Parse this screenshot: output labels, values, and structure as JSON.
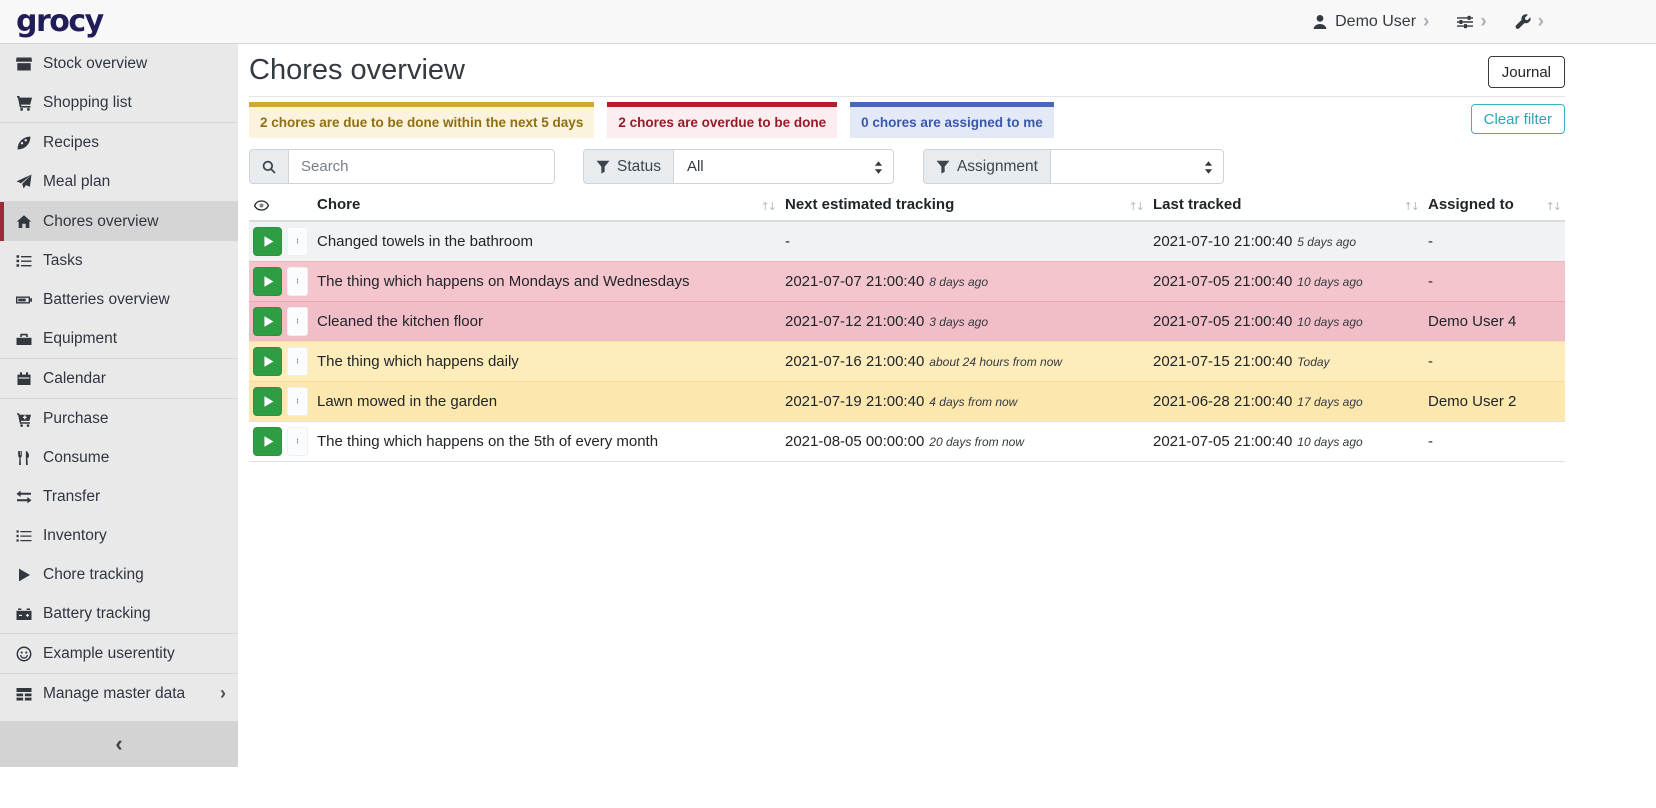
{
  "navbar": {
    "logo_text": "grocy",
    "user": {
      "label": "Demo User"
    }
  },
  "sidebar": {
    "items": [
      {
        "label": "Stock overview",
        "icon": "box-icon",
        "slug": "stock-overview"
      },
      {
        "label": "Shopping list",
        "icon": "shopping-cart-icon",
        "slug": "shopping-list"
      },
      {
        "label": "Recipes",
        "icon": "pizza-slice-icon",
        "slug": "recipes",
        "separator_before": true
      },
      {
        "label": "Meal plan",
        "icon": "paper-plane-icon",
        "slug": "meal-plan"
      },
      {
        "label": "Chores overview",
        "icon": "home-icon",
        "slug": "chores-overview",
        "active": true,
        "separator_before": true
      },
      {
        "label": "Tasks",
        "icon": "tasks-icon",
        "slug": "tasks"
      },
      {
        "label": "Batteries overview",
        "icon": "battery-icon",
        "slug": "batteries-overview"
      },
      {
        "label": "Equipment",
        "icon": "toolbox-icon",
        "slug": "equipment"
      },
      {
        "label": "Calendar",
        "icon": "calendar-icon",
        "slug": "calendar",
        "separator_before": true
      },
      {
        "label": "Purchase",
        "icon": "cart-plus-icon",
        "slug": "purchase",
        "separator_before": true
      },
      {
        "label": "Consume",
        "icon": "utensils-icon",
        "slug": "consume"
      },
      {
        "label": "Transfer",
        "icon": "exchange-icon",
        "slug": "transfer"
      },
      {
        "label": "Inventory",
        "icon": "list-icon",
        "slug": "inventory"
      },
      {
        "label": "Chore tracking",
        "icon": "play-icon",
        "slug": "chore-tracking"
      },
      {
        "label": "Battery tracking",
        "icon": "car-battery-icon",
        "slug": "battery-tracking"
      },
      {
        "label": "Example userentity",
        "icon": "smile-icon",
        "slug": "example-userentity",
        "separator_before": true
      },
      {
        "label": "Manage master data",
        "icon": "table-icon",
        "slug": "manage-master-data",
        "separator_before": true,
        "has_submenu": true
      }
    ]
  },
  "header": {
    "title": "Chores overview",
    "journal_button": "Journal"
  },
  "filters": {
    "badges": [
      {
        "text": "2 chores are due to be done within the next 5 days",
        "type": "warning"
      },
      {
        "text": "2 chores are overdue to be done",
        "type": "danger"
      },
      {
        "text": "0 chores are assigned to me",
        "type": "info"
      }
    ],
    "clear_filter_label": "Clear filter",
    "search_placeholder": "Search",
    "status": {
      "label": "Status",
      "value": "All"
    },
    "assignment": {
      "label": "Assignment",
      "value": ""
    }
  },
  "table": {
    "columns": [
      "Chore",
      "Next estimated tracking",
      "Last tracked",
      "Assigned to"
    ],
    "rows": [
      {
        "chore": "Changed towels in the bathroom",
        "next": "-",
        "next_ago": "",
        "last": "2021-07-10 21:00:40",
        "last_ago": "5 days ago",
        "assigned": "-",
        "state": "striped"
      },
      {
        "chore": "The thing which happens on Mondays and Wednesdays",
        "next": "2021-07-07 21:00:40",
        "next_ago": "8 days ago",
        "last": "2021-07-05 21:00:40",
        "last_ago": "10 days ago",
        "assigned": "-",
        "state": "overdue"
      },
      {
        "chore": "Cleaned the kitchen floor",
        "next": "2021-07-12 21:00:40",
        "next_ago": "3 days ago",
        "last": "2021-07-05 21:00:40",
        "last_ago": "10 days ago",
        "assigned": "Demo User 4",
        "state": "overdue-striped"
      },
      {
        "chore": "The thing which happens daily",
        "next": "2021-07-16 21:00:40",
        "next_ago": "about 24 hours from now",
        "last": "2021-07-15 21:00:40",
        "last_ago": "Today",
        "assigned": "-",
        "state": "due"
      },
      {
        "chore": "Lawn mowed in the garden",
        "next": "2021-07-19 21:00:40",
        "next_ago": "4 days from now",
        "last": "2021-06-28 21:00:40",
        "last_ago": "17 days ago",
        "assigned": "Demo User 2",
        "state": "due-striped"
      },
      {
        "chore": "The thing which happens on the 5th of every month",
        "next": "2021-08-05 00:00:00",
        "next_ago": "20 days from now",
        "last": "2021-07-05 21:00:40",
        "last_ago": "10 days ago",
        "assigned": "-",
        "state": "plain"
      }
    ]
  },
  "colors": {
    "logo_navy": "#211d58",
    "sidebar_active_accent": "#9c2b3a",
    "success_green": "#2e9e44",
    "warning_border": "#d3a637",
    "warning_bg": "#fbf3dd",
    "warning_text": "#8f6f12",
    "danger_border": "#b1202a",
    "danger_bg": "#fceef0",
    "danger_text": "#951b28",
    "info_border": "#4666c0",
    "info_bg": "#e4e9f7",
    "info_text": "#3a57ad",
    "row_due_bg": "#feedbb",
    "row_overdue_bg": "#f4c3cb",
    "clear_filter_teal": "#2ba4b8"
  }
}
